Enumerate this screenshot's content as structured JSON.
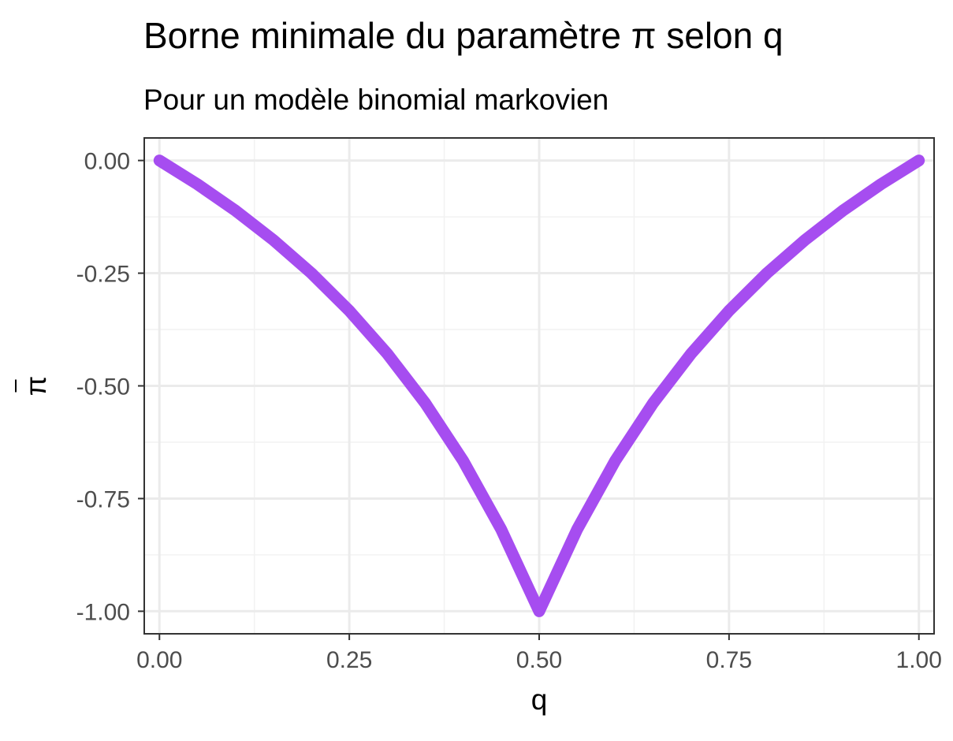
{
  "chart_data": {
    "type": "line",
    "title": "Borne minimale du paramètre π selon q",
    "subtitle": "Pour un modèle binomial markovien",
    "xlabel": "q",
    "ylabel": "π",
    "xlim": [
      -0.02,
      1.02
    ],
    "ylim": [
      -1.05,
      0.05
    ],
    "x_ticks": [
      {
        "value": 0,
        "label": "0.00"
      },
      {
        "value": 0.25,
        "label": "0.25"
      },
      {
        "value": 0.5,
        "label": "0.50"
      },
      {
        "value": 0.75,
        "label": "0.75"
      },
      {
        "value": 1,
        "label": "1.00"
      }
    ],
    "y_ticks": [
      {
        "value": 0,
        "label": "0.00"
      },
      {
        "value": -0.25,
        "label": "-0.25"
      },
      {
        "value": -0.5,
        "label": "-0.50"
      },
      {
        "value": -0.75,
        "label": "-0.75"
      },
      {
        "value": -1,
        "label": "-1.00"
      }
    ],
    "grid": true,
    "series": [
      {
        "color": "#a64df0",
        "x": [
          0,
          0.05,
          0.1,
          0.15,
          0.2,
          0.25,
          0.3,
          0.35,
          0.4,
          0.45,
          0.5,
          0.55,
          0.6,
          0.65,
          0.7,
          0.75,
          0.8,
          0.85,
          0.9,
          0.95,
          1
        ],
        "y": [
          0,
          -0.0526,
          -0.1111,
          -0.1765,
          -0.25,
          -0.3333,
          -0.4286,
          -0.5385,
          -0.6667,
          -0.8182,
          -1,
          -0.8182,
          -0.6667,
          -0.5385,
          -0.4286,
          -0.3333,
          -0.25,
          -0.1765,
          -0.1111,
          -0.0526,
          0
        ]
      }
    ]
  }
}
